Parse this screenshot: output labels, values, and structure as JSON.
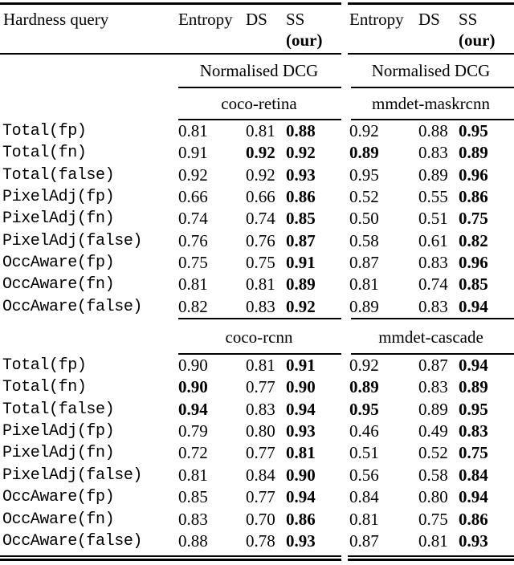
{
  "table": {
    "corner_header": "Hardness query",
    "method_columns": {
      "entropy": "Entropy",
      "ds": "DS",
      "ss": "SS",
      "ss_note": "(our)"
    },
    "metric": "Normalised DCG",
    "sections": [
      {
        "datasets": {
          "left": "coco-retina",
          "right": "mmdet-maskrcnn"
        },
        "rows": [
          {
            "label": "Total(fp)",
            "l": [
              "0.81",
              "0.81",
              "0.88"
            ],
            "lb": [
              false,
              false,
              true
            ],
            "r": [
              "0.92",
              "0.88",
              "0.95"
            ],
            "rb": [
              false,
              false,
              true
            ]
          },
          {
            "label": "Total(fn)",
            "l": [
              "0.91",
              "0.92",
              "0.92"
            ],
            "lb": [
              false,
              true,
              true
            ],
            "r": [
              "0.89",
              "0.83",
              "0.89"
            ],
            "rb": [
              true,
              false,
              true
            ]
          },
          {
            "label": "Total(false)",
            "l": [
              "0.92",
              "0.92",
              "0.93"
            ],
            "lb": [
              false,
              false,
              true
            ],
            "r": [
              "0.95",
              "0.89",
              "0.96"
            ],
            "rb": [
              false,
              false,
              true
            ]
          },
          {
            "label": "PixelAdj(fp)",
            "l": [
              "0.66",
              "0.66",
              "0.86"
            ],
            "lb": [
              false,
              false,
              true
            ],
            "r": [
              "0.52",
              "0.55",
              "0.86"
            ],
            "rb": [
              false,
              false,
              true
            ]
          },
          {
            "label": "PixelAdj(fn)",
            "l": [
              "0.74",
              "0.74",
              "0.85"
            ],
            "lb": [
              false,
              false,
              true
            ],
            "r": [
              "0.50",
              "0.51",
              "0.75"
            ],
            "rb": [
              false,
              false,
              true
            ]
          },
          {
            "label": "PixelAdj(false)",
            "l": [
              "0.76",
              "0.76",
              "0.87"
            ],
            "lb": [
              false,
              false,
              true
            ],
            "r": [
              "0.58",
              "0.61",
              "0.82"
            ],
            "rb": [
              false,
              false,
              true
            ]
          },
          {
            "label": "OccAware(fp)",
            "l": [
              "0.75",
              "0.75",
              "0.91"
            ],
            "lb": [
              false,
              false,
              true
            ],
            "r": [
              "0.87",
              "0.83",
              "0.96"
            ],
            "rb": [
              false,
              false,
              true
            ]
          },
          {
            "label": "OccAware(fn)",
            "l": [
              "0.81",
              "0.81",
              "0.89"
            ],
            "lb": [
              false,
              false,
              true
            ],
            "r": [
              "0.81",
              "0.74",
              "0.85"
            ],
            "rb": [
              false,
              false,
              true
            ]
          },
          {
            "label": "OccAware(false)",
            "l": [
              "0.82",
              "0.83",
              "0.92"
            ],
            "lb": [
              false,
              false,
              true
            ],
            "r": [
              "0.89",
              "0.83",
              "0.94"
            ],
            "rb": [
              false,
              false,
              true
            ]
          }
        ]
      },
      {
        "datasets": {
          "left": "coco-rcnn",
          "right": "mmdet-cascade"
        },
        "rows": [
          {
            "label": "Total(fp)",
            "l": [
              "0.90",
              "0.81",
              "0.91"
            ],
            "lb": [
              false,
              false,
              true
            ],
            "r": [
              "0.92",
              "0.87",
              "0.94"
            ],
            "rb": [
              false,
              false,
              true
            ]
          },
          {
            "label": "Total(fn)",
            "l": [
              "0.90",
              "0.77",
              "0.90"
            ],
            "lb": [
              true,
              false,
              true
            ],
            "r": [
              "0.89",
              "0.83",
              "0.89"
            ],
            "rb": [
              true,
              false,
              true
            ]
          },
          {
            "label": "Total(false)",
            "l": [
              "0.94",
              "0.83",
              "0.94"
            ],
            "lb": [
              true,
              false,
              true
            ],
            "r": [
              "0.95",
              "0.89",
              "0.95"
            ],
            "rb": [
              true,
              false,
              true
            ]
          },
          {
            "label": "PixelAdj(fp)",
            "l": [
              "0.79",
              "0.80",
              "0.93"
            ],
            "lb": [
              false,
              false,
              true
            ],
            "r": [
              "0.46",
              "0.49",
              "0.83"
            ],
            "rb": [
              false,
              false,
              true
            ]
          },
          {
            "label": "PixelAdj(fn)",
            "l": [
              "0.72",
              "0.77",
              "0.81"
            ],
            "lb": [
              false,
              false,
              true
            ],
            "r": [
              "0.51",
              "0.52",
              "0.75"
            ],
            "rb": [
              false,
              false,
              true
            ]
          },
          {
            "label": "PixelAdj(false)",
            "l": [
              "0.81",
              "0.84",
              "0.90"
            ],
            "lb": [
              false,
              false,
              true
            ],
            "r": [
              "0.56",
              "0.58",
              "0.84"
            ],
            "rb": [
              false,
              false,
              true
            ]
          },
          {
            "label": "OccAware(fp)",
            "l": [
              "0.85",
              "0.77",
              "0.94"
            ],
            "lb": [
              false,
              false,
              true
            ],
            "r": [
              "0.84",
              "0.80",
              "0.94"
            ],
            "rb": [
              false,
              false,
              true
            ]
          },
          {
            "label": "OccAware(fn)",
            "l": [
              "0.83",
              "0.70",
              "0.86"
            ],
            "lb": [
              false,
              false,
              true
            ],
            "r": [
              "0.81",
              "0.75",
              "0.86"
            ],
            "rb": [
              false,
              false,
              true
            ]
          },
          {
            "label": "OccAware(false)",
            "l": [
              "0.88",
              "0.78",
              "0.93"
            ],
            "lb": [
              false,
              false,
              true
            ],
            "r": [
              "0.87",
              "0.81",
              "0.93"
            ],
            "rb": [
              false,
              false,
              true
            ]
          }
        ]
      }
    ]
  }
}
